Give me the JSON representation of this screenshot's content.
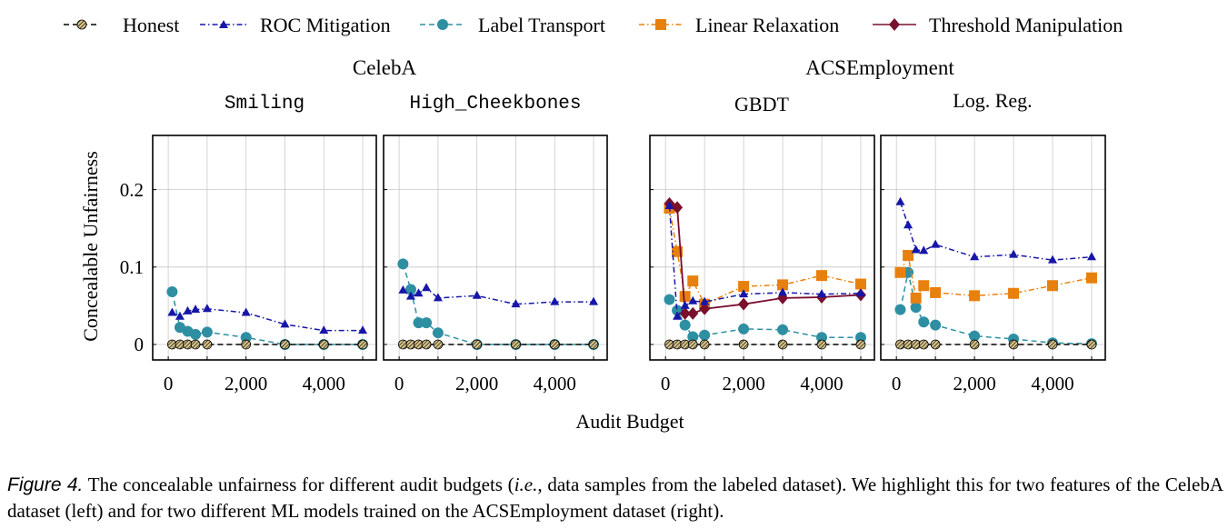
{
  "legend": {
    "entries": [
      {
        "key": "honest",
        "label": "Honest"
      },
      {
        "key": "roc",
        "label": "ROC Mitigation"
      },
      {
        "key": "label",
        "label": "Label Transport"
      },
      {
        "key": "linear",
        "label": "Linear Relaxation"
      },
      {
        "key": "threshold",
        "label": "Threshold Manipulation"
      }
    ]
  },
  "series_styles": {
    "honest": {
      "color": "#000000",
      "marker": "hatched-circle",
      "marker_fill": "#c9b37a",
      "line": "dashed"
    },
    "roc": {
      "color": "#1616a8",
      "marker": "triangle",
      "marker_fill": "#1616a8",
      "line": "dash-dot"
    },
    "label": {
      "color": "#2e8fa3",
      "marker": "circle",
      "marker_fill": "#2e8fa3",
      "line": "dashed"
    },
    "linear": {
      "color": "#e8800d",
      "marker": "square",
      "marker_fill": "#e8800d",
      "line": "dash-dot"
    },
    "threshold": {
      "color": "#7a0f2e",
      "marker": "diamond",
      "marker_fill": "#7a0f2e",
      "line": "solid"
    }
  },
  "group_titles": {
    "celeba": "CelebA",
    "acs": "ACSEmployment"
  },
  "y_axis_label": "Concealable Unfairness",
  "x_axis_label": "Audit Budget",
  "y_ticks": [
    {
      "v": 0,
      "label": "0"
    },
    {
      "v": 0.1,
      "label": "0.1"
    },
    {
      "v": 0.2,
      "label": "0.2"
    }
  ],
  "x_ticks": [
    {
      "v": 0,
      "label": "0"
    },
    {
      "v": 2000,
      "label": "2,000"
    },
    {
      "v": 4000,
      "label": "4,000"
    }
  ],
  "chart_data": [
    {
      "type": "line",
      "title": "Smiling",
      "title_font": "mono",
      "xlabel": "Audit Budget",
      "ylabel": "Concealable Unfairness",
      "xlim": [
        -400,
        5350
      ],
      "ylim": [
        -0.02,
        0.27
      ],
      "grid": true,
      "x": [
        100,
        300,
        500,
        700,
        1000,
        2000,
        3000,
        4000,
        5000
      ],
      "series": [
        {
          "name": "Honest",
          "key": "honest",
          "values": [
            0,
            0,
            0,
            0,
            0,
            0,
            0,
            0,
            0
          ]
        },
        {
          "name": "ROC Mitigation",
          "key": "roc",
          "values": [
            0.041,
            0.036,
            0.043,
            0.045,
            0.046,
            0.041,
            0.026,
            0.018,
            0.018
          ]
        },
        {
          "name": "Label Transport",
          "key": "label",
          "values": [
            0.068,
            0.022,
            0.017,
            0.013,
            0.016,
            0.009,
            0.0,
            0.0,
            0.0
          ]
        }
      ]
    },
    {
      "type": "line",
      "title": "High_Cheekbones",
      "title_font": "mono",
      "xlabel": "Audit Budget",
      "ylabel": "Concealable Unfairness",
      "xlim": [
        -400,
        5350
      ],
      "ylim": [
        -0.02,
        0.27
      ],
      "grid": true,
      "x": [
        100,
        300,
        500,
        700,
        1000,
        2000,
        3000,
        4000,
        5000
      ],
      "series": [
        {
          "name": "Honest",
          "key": "honest",
          "values": [
            0,
            0,
            0,
            0,
            0,
            0,
            0,
            0,
            0
          ]
        },
        {
          "name": "ROC Mitigation",
          "key": "roc",
          "values": [
            0.07,
            0.062,
            0.066,
            0.073,
            0.06,
            0.063,
            0.052,
            0.055,
            0.055
          ]
        },
        {
          "name": "Label Transport",
          "key": "label",
          "values": [
            0.104,
            0.071,
            0.028,
            0.028,
            0.015,
            0.0,
            0.0,
            0.0,
            0.0
          ]
        }
      ]
    },
    {
      "type": "line",
      "title": "GBDT",
      "title_font": "serif",
      "xlabel": "Audit Budget",
      "ylabel": "Concealable Unfairness",
      "xlim": [
        -400,
        5350
      ],
      "ylim": [
        -0.02,
        0.27
      ],
      "grid": true,
      "x": [
        100,
        300,
        500,
        700,
        1000,
        2000,
        3000,
        4000,
        5000
      ],
      "series": [
        {
          "name": "Honest",
          "key": "honest",
          "values": [
            0,
            0,
            0,
            0,
            0,
            0,
            0,
            0,
            0
          ]
        },
        {
          "name": "ROC Mitigation",
          "key": "roc",
          "values": [
            0.179,
            0.036,
            0.05,
            0.056,
            0.055,
            0.065,
            0.067,
            0.065,
            0.066
          ]
        },
        {
          "name": "Label Transport",
          "key": "label",
          "values": [
            0.058,
            0.044,
            0.025,
            0.01,
            0.012,
            0.02,
            0.019,
            0.009,
            0.009
          ]
        },
        {
          "name": "Linear Relaxation",
          "key": "linear",
          "values": [
            0.176,
            0.12,
            0.062,
            0.082,
            0.052,
            0.075,
            0.077,
            0.089,
            0.078
          ]
        },
        {
          "name": "Threshold Manipulation",
          "key": "threshold",
          "values": [
            0.182,
            0.177,
            0.04,
            0.04,
            0.046,
            0.052,
            0.06,
            0.061,
            0.064
          ]
        }
      ]
    },
    {
      "type": "line",
      "title": "Log. Reg.",
      "title_font": "serif",
      "xlabel": "Audit Budget",
      "ylabel": "Concealable Unfairness",
      "xlim": [
        -400,
        5350
      ],
      "ylim": [
        -0.02,
        0.27
      ],
      "grid": true,
      "x": [
        100,
        300,
        500,
        700,
        1000,
        2000,
        3000,
        4000,
        5000
      ],
      "series": [
        {
          "name": "Honest",
          "key": "honest",
          "values": [
            0,
            0,
            0,
            0,
            0,
            0,
            0,
            0,
            0
          ]
        },
        {
          "name": "ROC Mitigation",
          "key": "roc",
          "values": [
            0.184,
            0.154,
            0.122,
            0.121,
            0.129,
            0.113,
            0.116,
            0.109,
            0.113
          ]
        },
        {
          "name": "Label Transport",
          "key": "label",
          "values": [
            0.045,
            0.093,
            0.048,
            0.029,
            0.025,
            0.011,
            0.007,
            0.002,
            0.001
          ]
        },
        {
          "name": "Linear Relaxation",
          "key": "linear",
          "values": [
            0.093,
            0.115,
            0.06,
            0.076,
            0.067,
            0.063,
            0.066,
            0.076,
            0.086
          ]
        }
      ]
    }
  ],
  "caption": {
    "lead": "Figure 4.",
    "text_before_ie": " The concealable unfairness for different audit budgets (",
    "ie": "i.e.",
    "text_after_ie": ", data samples from the labeled dataset). We highlight this for two features of the CelebA dataset (left) and for two different ML models trained on the ACSEmployment dataset (right)."
  }
}
